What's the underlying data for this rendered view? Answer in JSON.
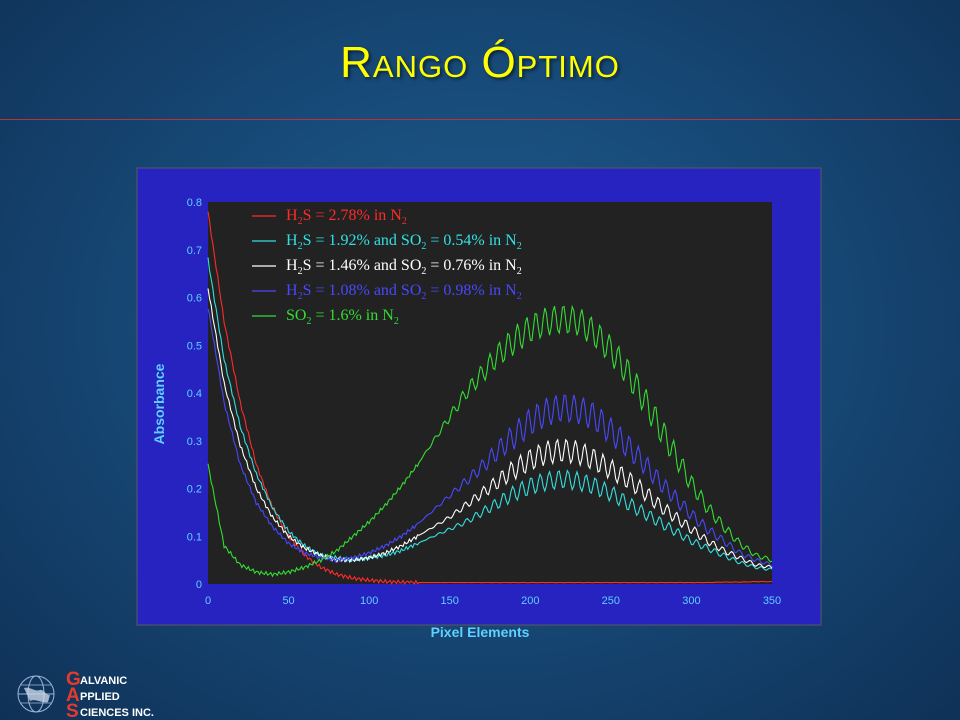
{
  "slide": {
    "title": "Rango Óptimo"
  },
  "logo": {
    "initials": [
      "G",
      "A",
      "S"
    ],
    "words": [
      "ALVANIC",
      "PPLIED",
      "CIENCES INC."
    ]
  },
  "colors": {
    "background": "#174a78",
    "title": "#ffff00",
    "panel": "#2623c0",
    "plot_bg": "#222222",
    "axis_text": "#5fd0ff"
  },
  "chart_data": {
    "type": "line",
    "xlabel": "Pixel Elements",
    "ylabel": "Absorbance",
    "xlim": [
      0,
      350
    ],
    "ylim": [
      0,
      0.8
    ],
    "xticks": [
      0,
      50,
      100,
      150,
      200,
      250,
      300,
      350
    ],
    "yticks": [
      0,
      0.1,
      0.2,
      0.3,
      0.4,
      0.5,
      0.6,
      0.7,
      0.8
    ],
    "ytick_labels": [
      "0",
      "0.1",
      "0.2",
      "0.3",
      "0.4",
      "0.5",
      "0.6",
      "0.7",
      "0.8"
    ],
    "legend_position": "top-left",
    "x": [
      0,
      10,
      20,
      30,
      40,
      50,
      60,
      70,
      80,
      90,
      100,
      110,
      120,
      130,
      140,
      150,
      160,
      170,
      180,
      190,
      200,
      210,
      220,
      230,
      240,
      250,
      260,
      270,
      280,
      290,
      300,
      310,
      320,
      330,
      340,
      350
    ],
    "series": [
      {
        "name": "H2S = 2.78% in N2",
        "legend": {
          "pre": "H",
          "sub1": "2",
          "mid": "S = 2.78%  in  N",
          "sub2": "2"
        },
        "color": "#ff2a2a",
        "values": [
          0.78,
          0.55,
          0.38,
          0.25,
          0.16,
          0.1,
          0.06,
          0.035,
          0.02,
          0.012,
          0.008,
          0.005,
          0.004,
          0.003,
          0.003,
          0.003,
          0.003,
          0.003,
          0.003,
          0.003,
          0.003,
          0.003,
          0.003,
          0.003,
          0.003,
          0.003,
          0.003,
          0.003,
          0.003,
          0.003,
          0.003,
          0.003,
          0.004,
          0.004,
          0.005,
          0.005
        ]
      },
      {
        "name": "H2S = 1.92% and SO2 = 0.54% in N2",
        "legend": {
          "pre": "H",
          "sub1": "2",
          "mid": "S = 1.92%  and  SO",
          "sub2": "2",
          "post": " = 0.54%  in  N",
          "sub3": "2"
        },
        "color": "#33e0e0",
        "values": [
          0.68,
          0.47,
          0.33,
          0.23,
          0.16,
          0.11,
          0.08,
          0.06,
          0.055,
          0.05,
          0.055,
          0.06,
          0.07,
          0.085,
          0.1,
          0.115,
          0.13,
          0.15,
          0.17,
          0.19,
          0.205,
          0.215,
          0.22,
          0.215,
          0.205,
          0.19,
          0.17,
          0.15,
          0.13,
          0.11,
          0.09,
          0.075,
          0.06,
          0.045,
          0.035,
          0.03
        ]
      },
      {
        "name": "H2S = 1.46% and SO2 = 0.76% in N2",
        "legend": {
          "pre": "H",
          "sub1": "2",
          "mid": "S = 1.46%  and  SO",
          "sub2": "2",
          "post": " = 0.76%  in  N",
          "sub3": "2"
        },
        "color": "#ffffff",
        "values": [
          0.62,
          0.42,
          0.29,
          0.2,
          0.14,
          0.1,
          0.075,
          0.06,
          0.05,
          0.05,
          0.055,
          0.065,
          0.08,
          0.1,
          0.12,
          0.14,
          0.165,
          0.19,
          0.215,
          0.24,
          0.26,
          0.275,
          0.28,
          0.275,
          0.26,
          0.24,
          0.22,
          0.195,
          0.165,
          0.14,
          0.115,
          0.09,
          0.07,
          0.055,
          0.04,
          0.035
        ]
      },
      {
        "name": "H2S = 1.08% and SO2 = 0.98% in N2",
        "legend": {
          "pre": "H",
          "sub1": "2",
          "mid": "S = 1.08%  and  SO",
          "sub2": "2",
          "post": " = 0.98%  in  N",
          "sub3": "2"
        },
        "color": "#4848ff",
        "values": [
          0.58,
          0.38,
          0.25,
          0.17,
          0.12,
          0.085,
          0.065,
          0.055,
          0.05,
          0.055,
          0.065,
          0.08,
          0.1,
          0.125,
          0.155,
          0.185,
          0.215,
          0.245,
          0.28,
          0.31,
          0.34,
          0.36,
          0.37,
          0.365,
          0.35,
          0.32,
          0.29,
          0.255,
          0.215,
          0.18,
          0.145,
          0.115,
          0.09,
          0.065,
          0.05,
          0.04
        ]
      },
      {
        "name": "SO2 = 1.6% in N2",
        "legend": {
          "pre": "SO",
          "sub1": "2",
          "mid": " = 1.6%  in  N",
          "sub2": "2"
        },
        "color": "#33dd33",
        "values": [
          0.25,
          0.08,
          0.04,
          0.025,
          0.02,
          0.025,
          0.035,
          0.05,
          0.07,
          0.1,
          0.13,
          0.165,
          0.205,
          0.25,
          0.3,
          0.35,
          0.4,
          0.44,
          0.48,
          0.51,
          0.535,
          0.55,
          0.555,
          0.55,
          0.525,
          0.49,
          0.445,
          0.39,
          0.33,
          0.27,
          0.21,
          0.16,
          0.12,
          0.085,
          0.06,
          0.05
        ]
      }
    ]
  }
}
